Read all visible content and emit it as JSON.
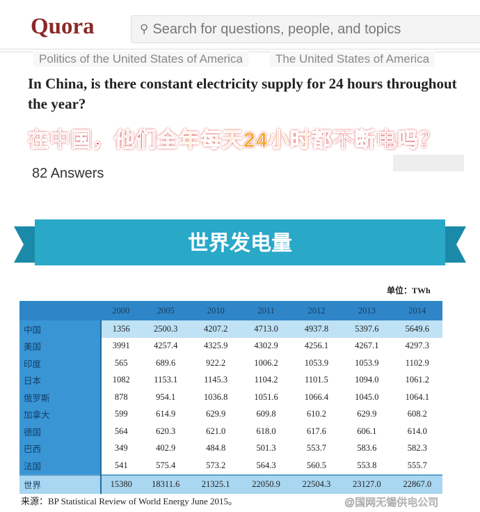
{
  "header": {
    "logo": "Quora",
    "search_placeholder": "Search for questions, people, and topics",
    "search_icon": "search-icon"
  },
  "topics": [
    "Politics of the United States of America",
    "The United States of America"
  ],
  "question": {
    "title": "In China, is there constant electricity supply for 24 hours throughout the year?",
    "cn_part1": "在中国，他们",
    "cn_part2": "全年每天24小时",
    "cn_part3": "都不断电吗？",
    "answers": "82 Answers"
  },
  "banner": {
    "title": "世界发电量",
    "color": "#29a8c8"
  },
  "table": {
    "unit": "单位：TWh",
    "columns": [
      "",
      "2000",
      "2005",
      "2010",
      "2011",
      "2012",
      "2013",
      "2014"
    ],
    "rows": [
      [
        "中国",
        "1356",
        "2500.3",
        "4207.2",
        "4713.0",
        "4937.8",
        "5397.6",
        "5649.6"
      ],
      [
        "美国",
        "3991",
        "4257.4",
        "4325.9",
        "4302.9",
        "4256.1",
        "4267.1",
        "4297.3"
      ],
      [
        "印度",
        "565",
        "689.6",
        "922.2",
        "1006.2",
        "1053.9",
        "1053.9",
        "1102.9"
      ],
      [
        "日本",
        "1082",
        "1153.1",
        "1145.3",
        "1104.2",
        "1101.5",
        "1094.0",
        "1061.2"
      ],
      [
        "俄罗斯",
        "878",
        "954.1",
        "1036.8",
        "1051.6",
        "1066.4",
        "1045.0",
        "1064.1"
      ],
      [
        "加拿大",
        "599",
        "614.9",
        "629.9",
        "609.8",
        "610.2",
        "629.9",
        "608.2"
      ],
      [
        "德国",
        "564",
        "620.3",
        "621.0",
        "618.0",
        "617.6",
        "606.1",
        "614.0"
      ],
      [
        "巴西",
        "349",
        "402.9",
        "484.8",
        "501.3",
        "553.7",
        "583.6",
        "582.3"
      ],
      [
        "法国",
        "541",
        "575.4",
        "573.2",
        "564.3",
        "560.5",
        "553.8",
        "555.7"
      ],
      [
        "世界",
        "15380",
        "18311.6",
        "21325.1",
        "22050.9",
        "22504.3",
        "23127.0",
        "22867.0"
      ]
    ],
    "source": "来源：BP Statistical Review of World Energy June 2015。"
  },
  "watermark": "@国网无锡供电公司"
}
